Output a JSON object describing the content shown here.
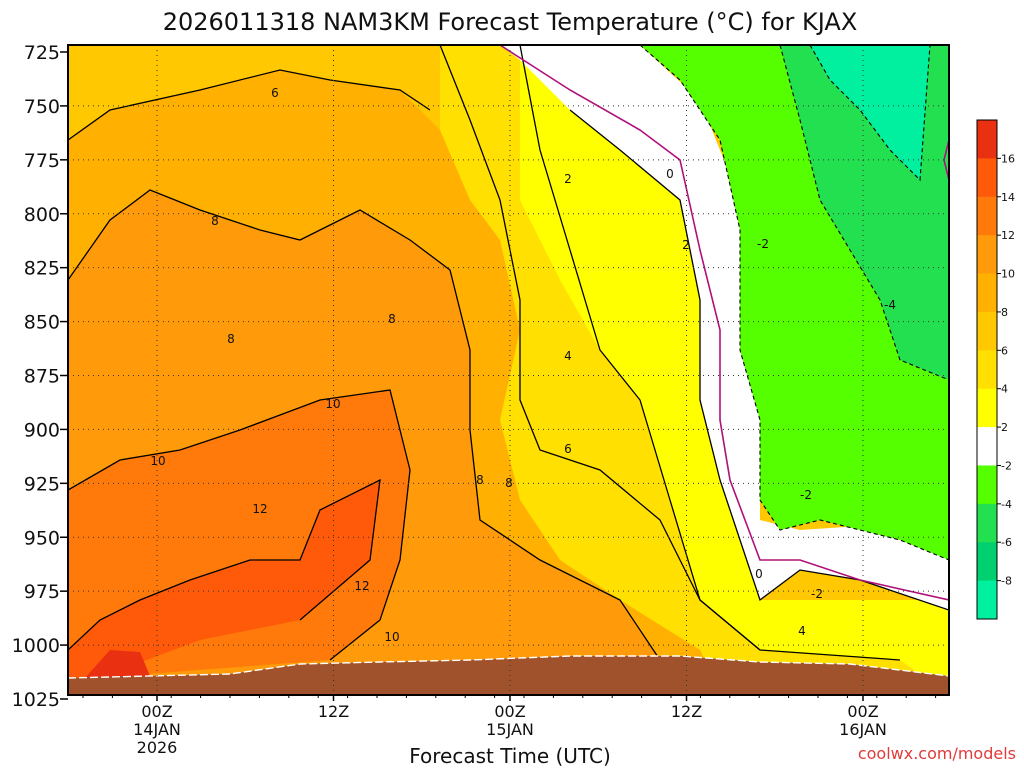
{
  "chart_data": {
    "type": "heatmap",
    "title": "2026011318 NAM3KM Forecast Temperature (°C) for KJAX",
    "xlabel": "Forecast Time (UTC)",
    "ylabel": "",
    "y_ticks": [
      "725",
      "750",
      "775",
      "800",
      "825",
      "850",
      "875",
      "900",
      "925",
      "950",
      "975",
      "1000",
      "1025"
    ],
    "x_ticks": [
      {
        "time": "00Z",
        "date": "14JAN",
        "year": "2026"
      },
      {
        "time": "12Z",
        "date": "",
        "year": ""
      },
      {
        "time": "00Z",
        "date": "15JAN",
        "year": ""
      },
      {
        "time": "12Z",
        "date": "",
        "year": ""
      },
      {
        "time": "00Z",
        "date": "16JAN",
        "year": ""
      }
    ],
    "colorbar": {
      "labels": [
        "16",
        "14",
        "12",
        "10",
        "8",
        "6",
        "4",
        "2",
        "-2",
        "-4",
        "-6",
        "-8"
      ],
      "colors": [
        "#e93010",
        "#ff5a0a",
        "#ff7a0a",
        "#ff9a0a",
        "#ffb000",
        "#ffc800",
        "#ffe000",
        "#ffff00",
        "#ffffff",
        "#55ff00",
        "#22e050",
        "#00d070",
        "#00f0a0"
      ]
    },
    "contour_labels": [
      {
        "label": "6"
      },
      {
        "label": "8"
      },
      {
        "label": "8"
      },
      {
        "label": "8"
      },
      {
        "label": "10"
      },
      {
        "label": "10"
      },
      {
        "label": "10"
      },
      {
        "label": "12"
      },
      {
        "label": "12"
      },
      {
        "label": "8"
      },
      {
        "label": "8"
      },
      {
        "label": "6"
      },
      {
        "label": "4"
      },
      {
        "label": "2"
      },
      {
        "label": "2"
      },
      {
        "label": "0"
      },
      {
        "label": "-2"
      },
      {
        "label": "-4"
      },
      {
        "label": "-2"
      },
      {
        "label": "0"
      },
      {
        "label": "-2"
      },
      {
        "label": "4"
      }
    ],
    "credit": "coolwx.com/models"
  }
}
